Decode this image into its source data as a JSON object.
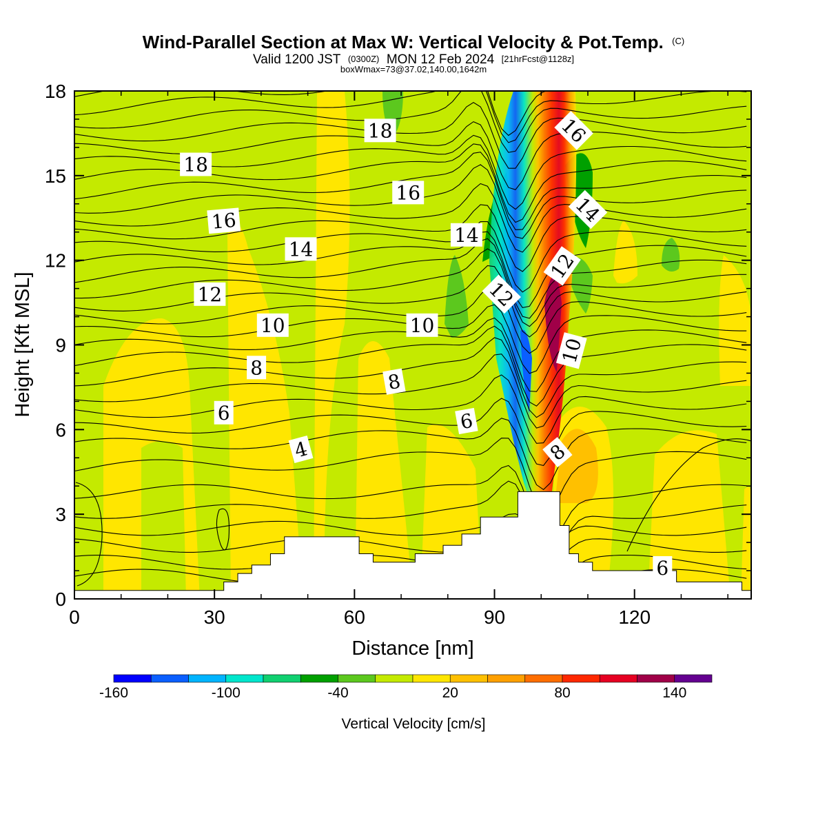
{
  "title": {
    "main": "Wind-Parallel Section at Max W: Vertical Velocity & Pot.Temp.",
    "copyright": "(C)",
    "valid_prefix": "Valid 1200 JST",
    "valid_utc": "(0300Z)",
    "valid_date": "MON 12 Feb 2024",
    "forecast": "[21hrFcst@1128z]",
    "box_info": "boxWmax=73@37.02,140.00,1642m"
  },
  "chart_data": {
    "type": "heatmap",
    "xlabel": "Distance [nm]",
    "ylabel": "Height [Kft MSL]",
    "xlim": [
      0,
      145
    ],
    "ylim": [
      0,
      18
    ],
    "xticks": [
      0,
      30,
      60,
      90,
      120
    ],
    "yticks": [
      0,
      3,
      6,
      9,
      12,
      15,
      18
    ],
    "colorbar": {
      "label": "Vertical Velocity [cm/s]",
      "ticks": [
        "-160",
        "-100",
        "-40",
        "20",
        "80",
        "140"
      ],
      "tick_values": [
        -160,
        -100,
        -40,
        20,
        80,
        140
      ],
      "range": [
        -160,
        160
      ],
      "levels": [
        -160,
        -140,
        -120,
        -100,
        -80,
        -60,
        -40,
        -20,
        0,
        20,
        40,
        60,
        80,
        100,
        120,
        140,
        160
      ],
      "colors": [
        "#0000ff",
        "#0a5fff",
        "#00b4ff",
        "#00e6cc",
        "#10d070",
        "#00a000",
        "#5cc81e",
        "#c4ea00",
        "#ffe600",
        "#ffc000",
        "#ffa000",
        "#ff6e00",
        "#ff2800",
        "#e60022",
        "#a00048",
        "#640090"
      ]
    },
    "terrain": [
      [
        0,
        0.3
      ],
      [
        31,
        0.3
      ],
      [
        32,
        0.6
      ],
      [
        35,
        0.9
      ],
      [
        38,
        1.2
      ],
      [
        42,
        1.6
      ],
      [
        45,
        2.2
      ],
      [
        58,
        2.2
      ],
      [
        61,
        1.6
      ],
      [
        64,
        1.3
      ],
      [
        73,
        1.6
      ],
      [
        79,
        1.9
      ],
      [
        83,
        2.3
      ],
      [
        87,
        2.9
      ],
      [
        95,
        3.8
      ],
      [
        101,
        3.8
      ],
      [
        104,
        2.6
      ],
      [
        106,
        1.6
      ],
      [
        108,
        1.3
      ],
      [
        111,
        1.0
      ],
      [
        129,
        0.6
      ],
      [
        141,
        0.6
      ],
      [
        143,
        0.3
      ],
      [
        145,
        0.3
      ]
    ],
    "contour_labels": [
      {
        "text": "18",
        "x": 26,
        "y": 15.4,
        "angle": 0
      },
      {
        "text": "18",
        "x": 65.5,
        "y": 16.6,
        "angle": 0
      },
      {
        "text": "16",
        "x": 32,
        "y": 13.4,
        "angle": -5
      },
      {
        "text": "16",
        "x": 71.5,
        "y": 14.4,
        "angle": 0
      },
      {
        "text": "16",
        "x": 107,
        "y": 16.6,
        "angle": 45
      },
      {
        "text": "14",
        "x": 48.5,
        "y": 12.4,
        "angle": 0
      },
      {
        "text": "14",
        "x": 84,
        "y": 12.9,
        "angle": 0
      },
      {
        "text": "14",
        "x": 110,
        "y": 13.8,
        "angle": 45
      },
      {
        "text": "12",
        "x": 29,
        "y": 10.8,
        "angle": 0
      },
      {
        "text": "12",
        "x": 91.5,
        "y": 10.8,
        "angle": 45
      },
      {
        "text": "12",
        "x": 104.5,
        "y": 11.8,
        "angle": -55
      },
      {
        "text": "10",
        "x": 42.5,
        "y": 9.7,
        "angle": 0
      },
      {
        "text": "10",
        "x": 74.5,
        "y": 9.7,
        "angle": 0
      },
      {
        "text": "10",
        "x": 106.5,
        "y": 8.8,
        "angle": -75
      },
      {
        "text": "8",
        "x": 39,
        "y": 8.2,
        "angle": 0
      },
      {
        "text": "8",
        "x": 68.5,
        "y": 7.7,
        "angle": -10
      },
      {
        "text": "8",
        "x": 103.5,
        "y": 5.2,
        "angle": -40
      },
      {
        "text": "6",
        "x": 32,
        "y": 6.6,
        "angle": 0
      },
      {
        "text": "6",
        "x": 84,
        "y": 6.3,
        "angle": -10
      },
      {
        "text": "6",
        "x": 126,
        "y": 1.1,
        "angle": 0
      },
      {
        "text": "4",
        "x": 48.5,
        "y": 5.3,
        "angle": -15
      }
    ]
  }
}
